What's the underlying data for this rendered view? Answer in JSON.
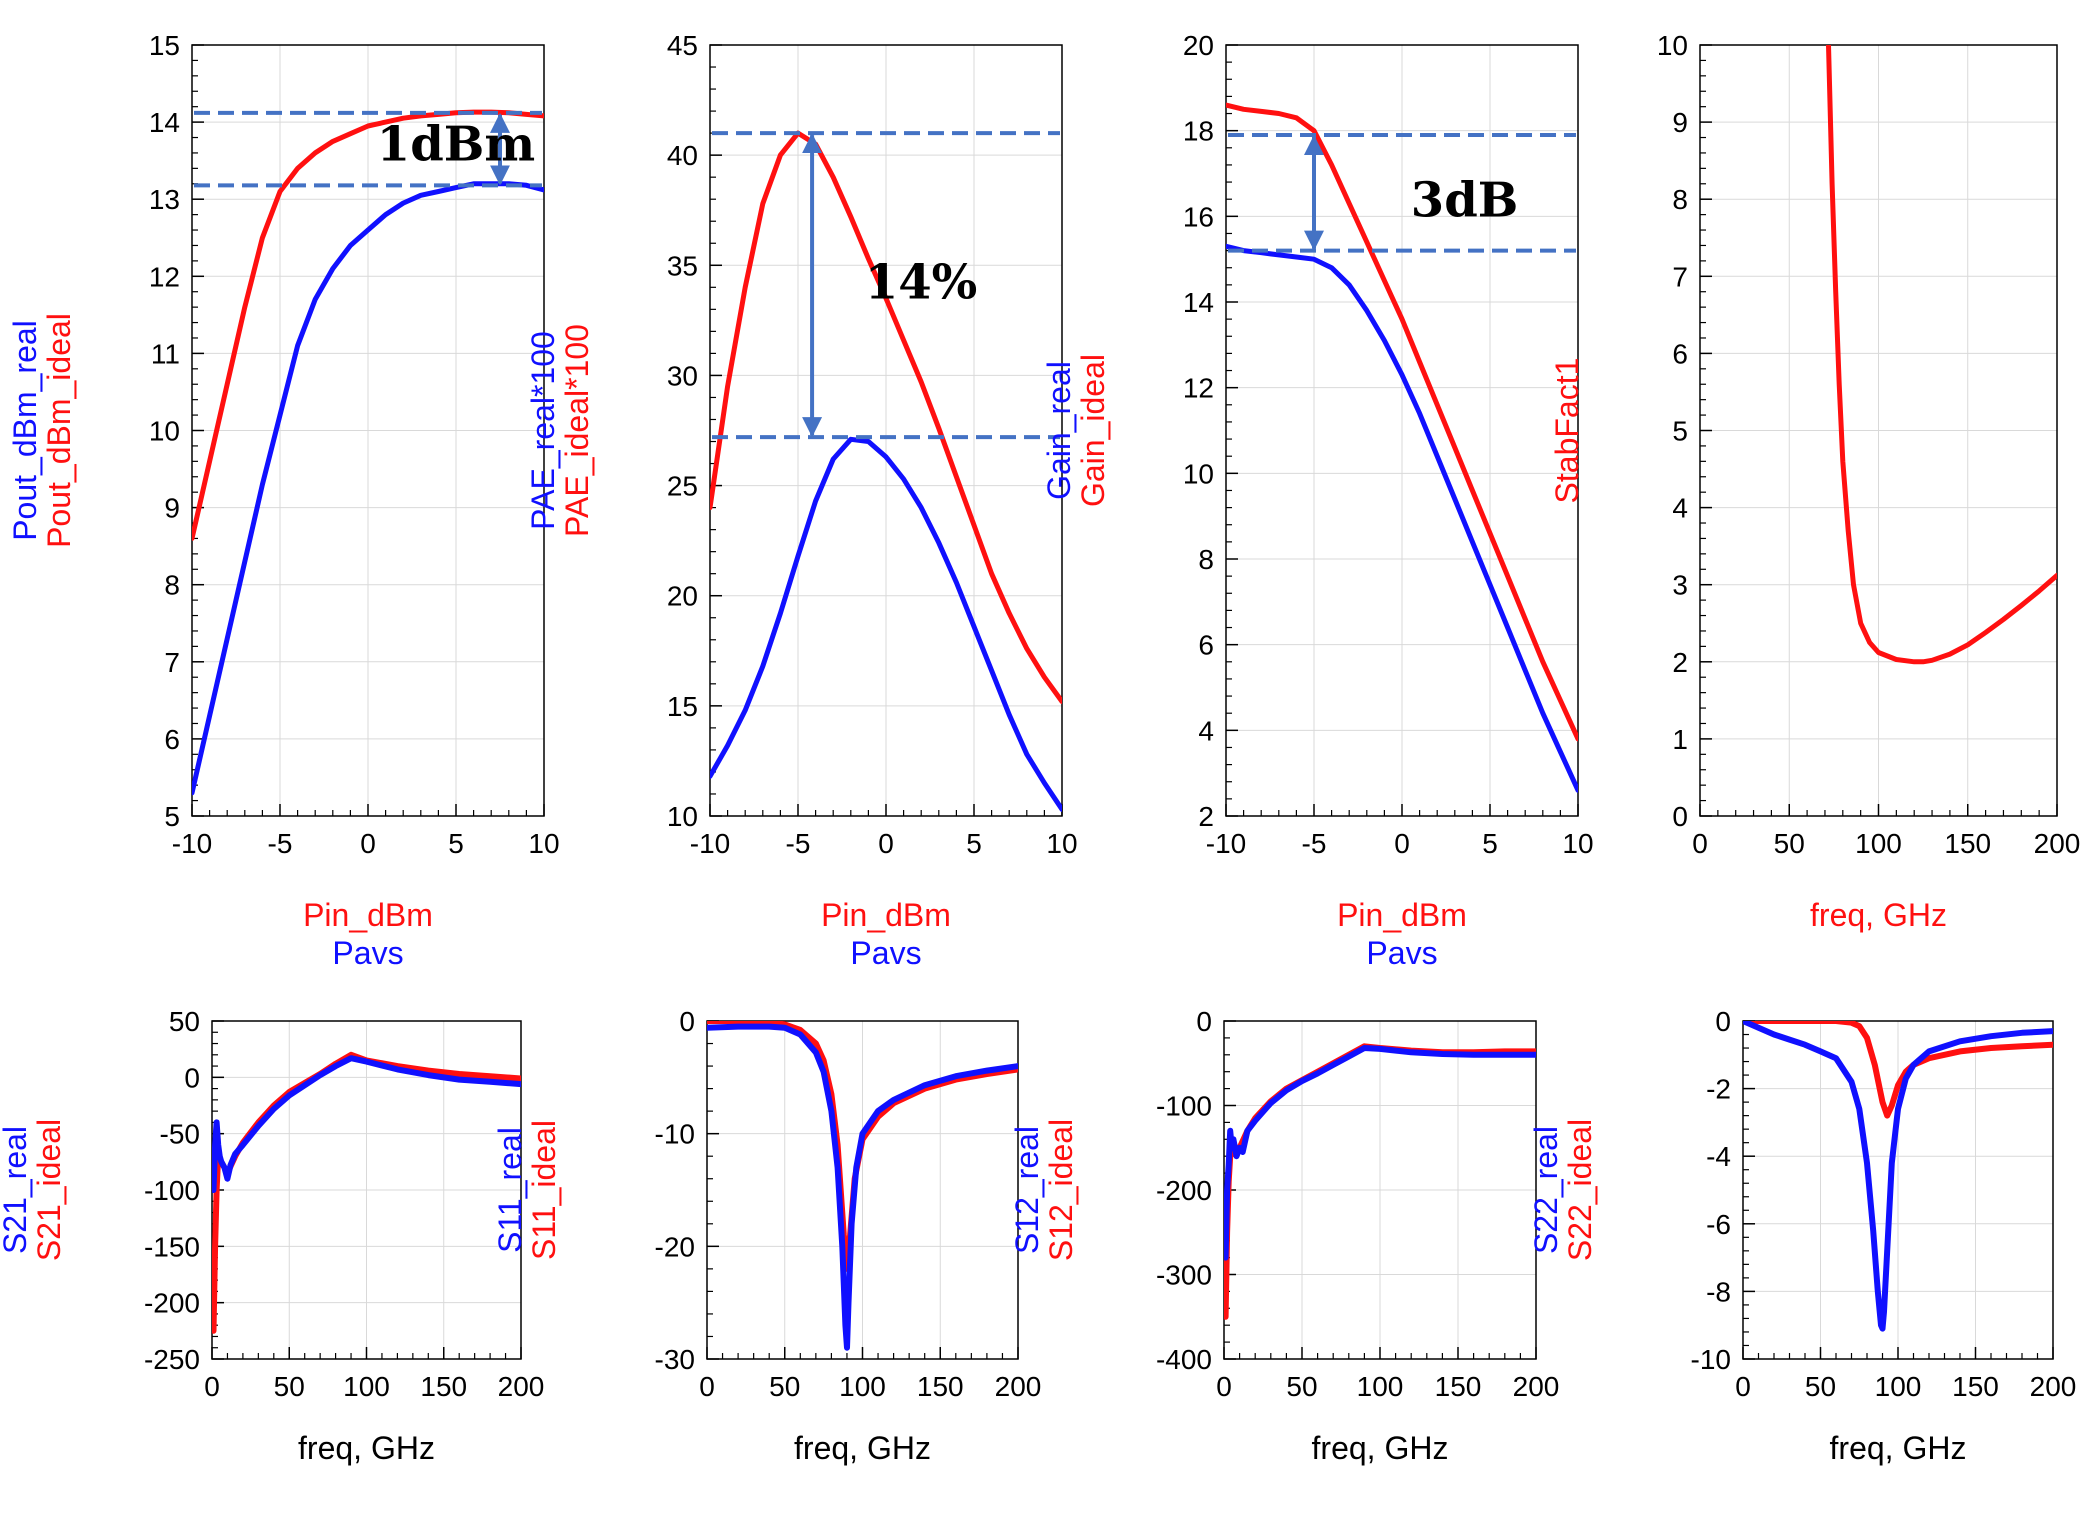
{
  "colors": {
    "real": "#1010ff",
    "ideal": "#ff1010",
    "marker": "#4472c4",
    "text": "#000000"
  },
  "chart_data": [
    {
      "id": "pout",
      "type": "line",
      "xlabel_lines": [
        {
          "text": "Pin_dBm",
          "series": "ideal"
        },
        {
          "text": "Pavs",
          "series": "real"
        }
      ],
      "ylabel_lines": [
        {
          "text": "Pout_dBm_real",
          "series": "real"
        },
        {
          "text": "Pout_dBm_ideal",
          "series": "ideal"
        }
      ],
      "xlim": [
        -10,
        10
      ],
      "ylim": [
        5,
        15
      ],
      "xticks": [
        -10,
        -5,
        0,
        5,
        10
      ],
      "yticks": [
        5,
        6,
        7,
        8,
        9,
        10,
        11,
        12,
        13,
        14,
        15
      ],
      "series": [
        {
          "name": "Pout_dBm_real",
          "key": "real",
          "x": [
            -10,
            -9,
            -8,
            -7,
            -6,
            -5,
            -4,
            -3,
            -2,
            -1,
            0,
            1,
            2,
            3,
            4,
            5,
            6,
            7,
            8,
            9,
            10
          ],
          "y": [
            5.3,
            6.3,
            7.3,
            8.3,
            9.3,
            10.2,
            11.1,
            11.7,
            12.1,
            12.4,
            12.6,
            12.8,
            12.95,
            13.05,
            13.1,
            13.15,
            13.2,
            13.2,
            13.2,
            13.18,
            13.12
          ]
        },
        {
          "name": "Pout_dBm_ideal",
          "key": "ideal",
          "x": [
            -10,
            -9,
            -8,
            -7,
            -6,
            -5,
            -4,
            -3,
            -2,
            -1,
            0,
            1,
            2,
            3,
            4,
            5,
            6,
            7,
            8,
            9,
            10
          ],
          "y": [
            8.6,
            9.6,
            10.6,
            11.6,
            12.5,
            13.1,
            13.4,
            13.6,
            13.75,
            13.85,
            13.95,
            14.0,
            14.05,
            14.08,
            14.1,
            14.12,
            14.13,
            14.13,
            14.12,
            14.1,
            14.08
          ]
        }
      ],
      "hlines": [
        14.12,
        13.18
      ],
      "arrows": [
        {
          "x": 7.5,
          "y1": 14.12,
          "y2": 13.18
        }
      ],
      "annotations": [
        {
          "text": "1dBm",
          "x": 0.5,
          "y": 13.5
        }
      ]
    },
    {
      "id": "pae",
      "type": "line",
      "xlabel_lines": [
        {
          "text": "Pin_dBm",
          "series": "ideal"
        },
        {
          "text": "Pavs",
          "series": "real"
        }
      ],
      "ylabel_lines": [
        {
          "text": "PAE_real*100",
          "series": "real"
        },
        {
          "text": "PAE_ideal*100",
          "series": "ideal"
        }
      ],
      "xlim": [
        -10,
        10
      ],
      "ylim": [
        10,
        45
      ],
      "xticks": [
        -10,
        -5,
        0,
        5,
        10
      ],
      "yticks": [
        10,
        15,
        20,
        25,
        30,
        35,
        40,
        45
      ],
      "series": [
        {
          "name": "PAE_real*100",
          "key": "real",
          "x": [
            -10,
            -9,
            -8,
            -7,
            -6,
            -5,
            -4,
            -3,
            -2,
            -1,
            0,
            1,
            2,
            3,
            4,
            5,
            6,
            7,
            8,
            9,
            10
          ],
          "y": [
            11.8,
            13.2,
            14.8,
            16.8,
            19.2,
            21.8,
            24.3,
            26.2,
            27.1,
            27.0,
            26.3,
            25.3,
            24.0,
            22.4,
            20.6,
            18.6,
            16.6,
            14.6,
            12.8,
            11.5,
            10.3
          ]
        },
        {
          "name": "PAE_ideal*100",
          "key": "ideal",
          "x": [
            -10,
            -9,
            -8,
            -7,
            -6,
            -5,
            -4,
            -3,
            -2,
            -1,
            0,
            1,
            2,
            3,
            4,
            5,
            6,
            7,
            8,
            9,
            10
          ],
          "y": [
            24.0,
            29.5,
            34.0,
            37.8,
            40.0,
            41.0,
            40.5,
            39.0,
            37.2,
            35.3,
            33.5,
            31.6,
            29.7,
            27.6,
            25.4,
            23.2,
            21.0,
            19.2,
            17.6,
            16.3,
            15.2
          ]
        }
      ],
      "hlines": [
        41.0,
        27.2
      ],
      "arrows": [
        {
          "x": -4.2,
          "y1": 41.0,
          "y2": 27.2
        }
      ],
      "annotations": [
        {
          "text": "14%",
          "x": -1.2,
          "y": 33.5
        }
      ]
    },
    {
      "id": "gain",
      "type": "line",
      "xlabel_lines": [
        {
          "text": "Pin_dBm",
          "series": "ideal"
        },
        {
          "text": "Pavs",
          "series": "real"
        }
      ],
      "ylabel_lines": [
        {
          "text": "Gain_real",
          "series": "real"
        },
        {
          "text": "Gain_ideal",
          "series": "ideal"
        }
      ],
      "xlim": [
        -10,
        10
      ],
      "ylim": [
        2,
        20
      ],
      "xticks": [
        -10,
        -5,
        0,
        5,
        10
      ],
      "yticks": [
        2,
        4,
        6,
        8,
        10,
        12,
        14,
        16,
        18,
        20
      ],
      "series": [
        {
          "name": "Gain_real",
          "key": "real",
          "x": [
            -10,
            -9,
            -8,
            -7,
            -6,
            -5,
            -4,
            -3,
            -2,
            -1,
            0,
            1,
            2,
            3,
            4,
            5,
            6,
            7,
            8,
            9,
            10
          ],
          "y": [
            15.3,
            15.2,
            15.15,
            15.1,
            15.05,
            15.0,
            14.8,
            14.4,
            13.8,
            13.1,
            12.3,
            11.4,
            10.4,
            9.4,
            8.4,
            7.4,
            6.4,
            5.4,
            4.4,
            3.5,
            2.6
          ]
        },
        {
          "name": "Gain_ideal",
          "key": "ideal",
          "x": [
            -10,
            -9,
            -8,
            -7,
            -6,
            -5,
            -4,
            -3,
            -2,
            -1,
            0,
            1,
            2,
            3,
            4,
            5,
            6,
            7,
            8,
            9,
            10
          ],
          "y": [
            18.6,
            18.5,
            18.45,
            18.4,
            18.3,
            18.0,
            17.2,
            16.3,
            15.4,
            14.5,
            13.6,
            12.6,
            11.6,
            10.6,
            9.6,
            8.6,
            7.6,
            6.6,
            5.6,
            4.7,
            3.8
          ]
        }
      ],
      "hlines": [
        17.9,
        15.2
      ],
      "arrows": [
        {
          "x": -5.0,
          "y1": 17.9,
          "y2": 15.2
        }
      ],
      "annotations": [
        {
          "text": "3dB",
          "x": 0.5,
          "y": 16.0
        }
      ]
    },
    {
      "id": "stab",
      "type": "line",
      "xlabel_lines": [
        {
          "text": "freq, GHz",
          "series": "ideal"
        }
      ],
      "ylabel_lines": [
        {
          "text": "StabFact1",
          "series": "ideal"
        }
      ],
      "xlim": [
        0,
        200
      ],
      "ylim": [
        0,
        10
      ],
      "xticks": [
        0,
        50,
        100,
        150,
        200
      ],
      "yticks": [
        0,
        1,
        2,
        3,
        4,
        5,
        6,
        7,
        8,
        9,
        10
      ],
      "series": [
        {
          "name": "StabFact1",
          "key": "ideal",
          "x": [
            72,
            74,
            76,
            78,
            80,
            83,
            86,
            90,
            95,
            100,
            110,
            120,
            125,
            130,
            140,
            150,
            160,
            170,
            180,
            190,
            200
          ],
          "y": [
            10.0,
            8.2,
            6.8,
            5.6,
            4.6,
            3.7,
            3.0,
            2.5,
            2.25,
            2.12,
            2.03,
            2.0,
            2.0,
            2.02,
            2.1,
            2.22,
            2.38,
            2.55,
            2.73,
            2.92,
            3.12
          ]
        }
      ],
      "hlines": [],
      "arrows": [],
      "annotations": []
    },
    {
      "id": "s21",
      "type": "line",
      "xlabel_lines": [
        {
          "text": "freq, GHz",
          "series": "text"
        }
      ],
      "ylabel_lines": [
        {
          "text": "S21_real",
          "series": "real"
        },
        {
          "text": "S21_ideal",
          "series": "ideal"
        }
      ],
      "xlim": [
        0,
        200
      ],
      "ylim": [
        -250,
        50
      ],
      "xticks": [
        0,
        50,
        100,
        150,
        200
      ],
      "yticks": [
        -250,
        -200,
        -150,
        -100,
        -50,
        0,
        50
      ],
      "series": [
        {
          "name": "S21_ideal",
          "key": "ideal",
          "x": [
            1,
            2,
            3,
            4,
            6,
            8,
            10,
            15,
            20,
            30,
            40,
            50,
            60,
            70,
            80,
            90,
            100,
            120,
            140,
            160,
            180,
            200
          ],
          "y": [
            -225,
            -150,
            -100,
            -70,
            -75,
            -80,
            -85,
            -70,
            -58,
            -40,
            -25,
            -13,
            -5,
            3,
            12,
            20,
            15,
            10,
            6,
            3,
            1,
            -1
          ]
        },
        {
          "name": "S21_real",
          "key": "real",
          "x": [
            1,
            2,
            3,
            4,
            5,
            6,
            8,
            10,
            12,
            15,
            20,
            30,
            40,
            50,
            60,
            70,
            80,
            90,
            100,
            120,
            140,
            160,
            180,
            200
          ],
          "y": [
            -100,
            -60,
            -40,
            -60,
            -70,
            -75,
            -80,
            -90,
            -78,
            -68,
            -60,
            -43,
            -28,
            -16,
            -7,
            2,
            10,
            17,
            14,
            7,
            2,
            -2,
            -4,
            -6
          ]
        }
      ],
      "hlines": [],
      "arrows": [],
      "annotations": []
    },
    {
      "id": "s11",
      "type": "line",
      "xlabel_lines": [
        {
          "text": "freq, GHz",
          "series": "text"
        }
      ],
      "ylabel_lines": [
        {
          "text": "S11_real",
          "series": "real"
        },
        {
          "text": "S11_ideal",
          "series": "ideal"
        }
      ],
      "xlim": [
        0,
        200
      ],
      "ylim": [
        -30,
        0
      ],
      "xticks": [
        0,
        50,
        100,
        150,
        200
      ],
      "yticks": [
        -30,
        -20,
        -10,
        0
      ],
      "series": [
        {
          "name": "S11_ideal",
          "key": "ideal",
          "x": [
            0,
            20,
            40,
            50,
            60,
            70,
            75,
            80,
            84,
            88,
            90,
            92,
            95,
            100,
            110,
            120,
            140,
            160,
            180,
            200
          ],
          "y": [
            0,
            0,
            -0.1,
            -0.3,
            -0.8,
            -2.0,
            -3.5,
            -6.5,
            -11,
            -19,
            -22,
            -19,
            -14,
            -10.5,
            -8.5,
            -7.3,
            -6.0,
            -5.2,
            -4.7,
            -4.3
          ]
        },
        {
          "name": "S11_real",
          "key": "real",
          "x": [
            0,
            20,
            40,
            50,
            60,
            70,
            75,
            80,
            84,
            87,
            89,
            90,
            91,
            93,
            96,
            100,
            110,
            120,
            140,
            160,
            180,
            200
          ],
          "y": [
            -0.6,
            -0.5,
            -0.5,
            -0.6,
            -1.2,
            -2.8,
            -4.5,
            -8,
            -13,
            -20,
            -27,
            -29,
            -25,
            -18,
            -13,
            -10,
            -8,
            -7,
            -5.7,
            -4.9,
            -4.4,
            -4.0
          ]
        }
      ],
      "hlines": [],
      "arrows": [],
      "annotations": []
    },
    {
      "id": "s12",
      "type": "line",
      "xlabel_lines": [
        {
          "text": "freq, GHz",
          "series": "text"
        }
      ],
      "ylabel_lines": [
        {
          "text": "S12_real",
          "series": "real"
        },
        {
          "text": "S12_ideal",
          "series": "ideal"
        }
      ],
      "xlim": [
        0,
        200
      ],
      "ylim": [
        -400,
        0
      ],
      "xticks": [
        0,
        50,
        100,
        150,
        200
      ],
      "yticks": [
        -400,
        -300,
        -200,
        -100,
        0
      ],
      "series": [
        {
          "name": "S12_ideal",
          "key": "ideal",
          "x": [
            1,
            2,
            3,
            4,
            6,
            8,
            10,
            15,
            20,
            30,
            40,
            50,
            60,
            70,
            80,
            90,
            100,
            120,
            140,
            160,
            180,
            200
          ],
          "y": [
            -350,
            -250,
            -190,
            -160,
            -155,
            -150,
            -150,
            -130,
            -115,
            -95,
            -80,
            -70,
            -60,
            -50,
            -40,
            -30,
            -32,
            -35,
            -37,
            -37,
            -36,
            -36
          ]
        },
        {
          "name": "S12_real",
          "key": "real",
          "x": [
            1,
            2,
            3,
            4,
            5,
            6,
            8,
            10,
            12,
            15,
            20,
            30,
            40,
            50,
            60,
            70,
            80,
            90,
            100,
            120,
            140,
            160,
            180,
            200
          ],
          "y": [
            -280,
            -200,
            -170,
            -130,
            -150,
            -140,
            -160,
            -150,
            -155,
            -130,
            -118,
            -97,
            -82,
            -71,
            -62,
            -52,
            -42,
            -32,
            -33,
            -37,
            -39,
            -40,
            -40,
            -40
          ]
        }
      ],
      "hlines": [],
      "arrows": [],
      "annotations": []
    },
    {
      "id": "s22",
      "type": "line",
      "xlabel_lines": [
        {
          "text": "freq, GHz",
          "series": "text"
        }
      ],
      "ylabel_lines": [
        {
          "text": "S22_real",
          "series": "real"
        },
        {
          "text": "S22_ideal",
          "series": "ideal"
        }
      ],
      "xlim": [
        0,
        200
      ],
      "ylim": [
        -10,
        0
      ],
      "xticks": [
        0,
        50,
        100,
        150,
        200
      ],
      "yticks": [
        -10,
        -8,
        -6,
        -4,
        -2,
        0
      ],
      "series": [
        {
          "name": "S22_ideal",
          "key": "ideal",
          "x": [
            0,
            20,
            40,
            60,
            70,
            75,
            80,
            85,
            90,
            93,
            96,
            100,
            105,
            110,
            120,
            140,
            160,
            180,
            200
          ],
          "y": [
            0,
            0,
            0,
            0,
            -0.05,
            -0.15,
            -0.5,
            -1.3,
            -2.4,
            -2.8,
            -2.5,
            -1.9,
            -1.5,
            -1.3,
            -1.1,
            -0.9,
            -0.8,
            -0.75,
            -0.7
          ]
        },
        {
          "name": "S22_real",
          "key": "real",
          "x": [
            0,
            10,
            20,
            30,
            40,
            50,
            60,
            70,
            75,
            80,
            84,
            87,
            89,
            90,
            91,
            93,
            96,
            100,
            105,
            110,
            120,
            140,
            160,
            180,
            200
          ],
          "y": [
            0,
            -0.2,
            -0.4,
            -0.55,
            -0.7,
            -0.9,
            -1.1,
            -1.8,
            -2.6,
            -4.2,
            -6.2,
            -8.0,
            -9.0,
            -9.1,
            -8.6,
            -6.8,
            -4.2,
            -2.6,
            -1.7,
            -1.3,
            -0.9,
            -0.6,
            -0.45,
            -0.35,
            -0.3
          ]
        }
      ],
      "hlines": [],
      "arrows": [],
      "annotations": []
    }
  ]
}
